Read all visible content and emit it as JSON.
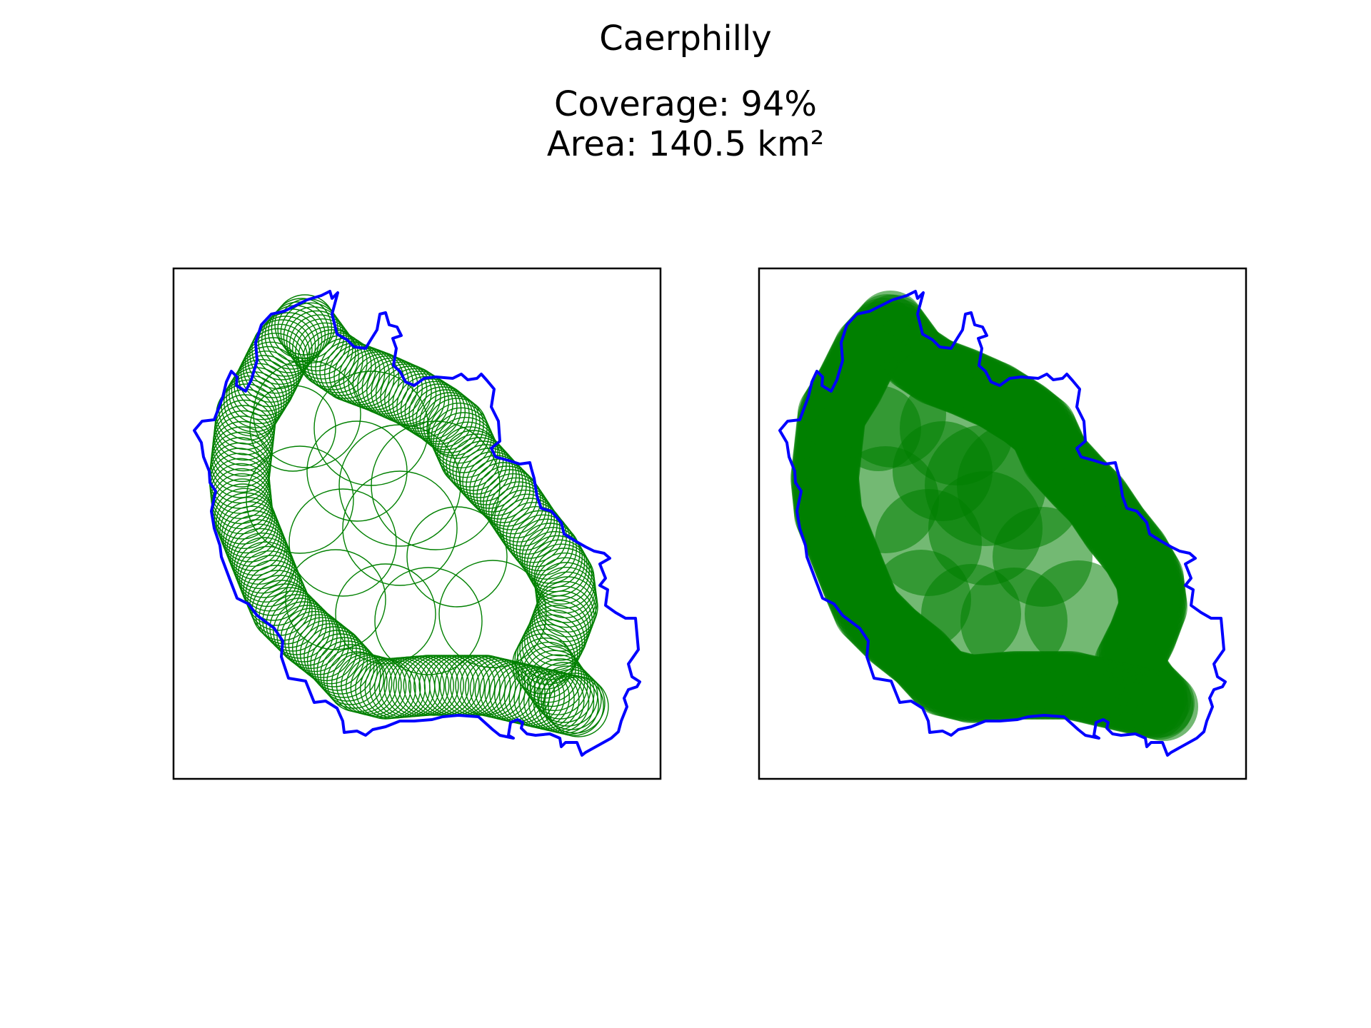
{
  "figure": {
    "title": "Caerphilly",
    "coverage_text": "Coverage: 94%",
    "area_text": "Area: 140.5 km²"
  },
  "colors": {
    "boundary": "#0000ff",
    "circles": "#008000",
    "frame": "#000000"
  },
  "panels": [
    {
      "name": "circle-outlines",
      "style": "outline"
    },
    {
      "name": "circle-fill",
      "style": "filled"
    }
  ]
}
